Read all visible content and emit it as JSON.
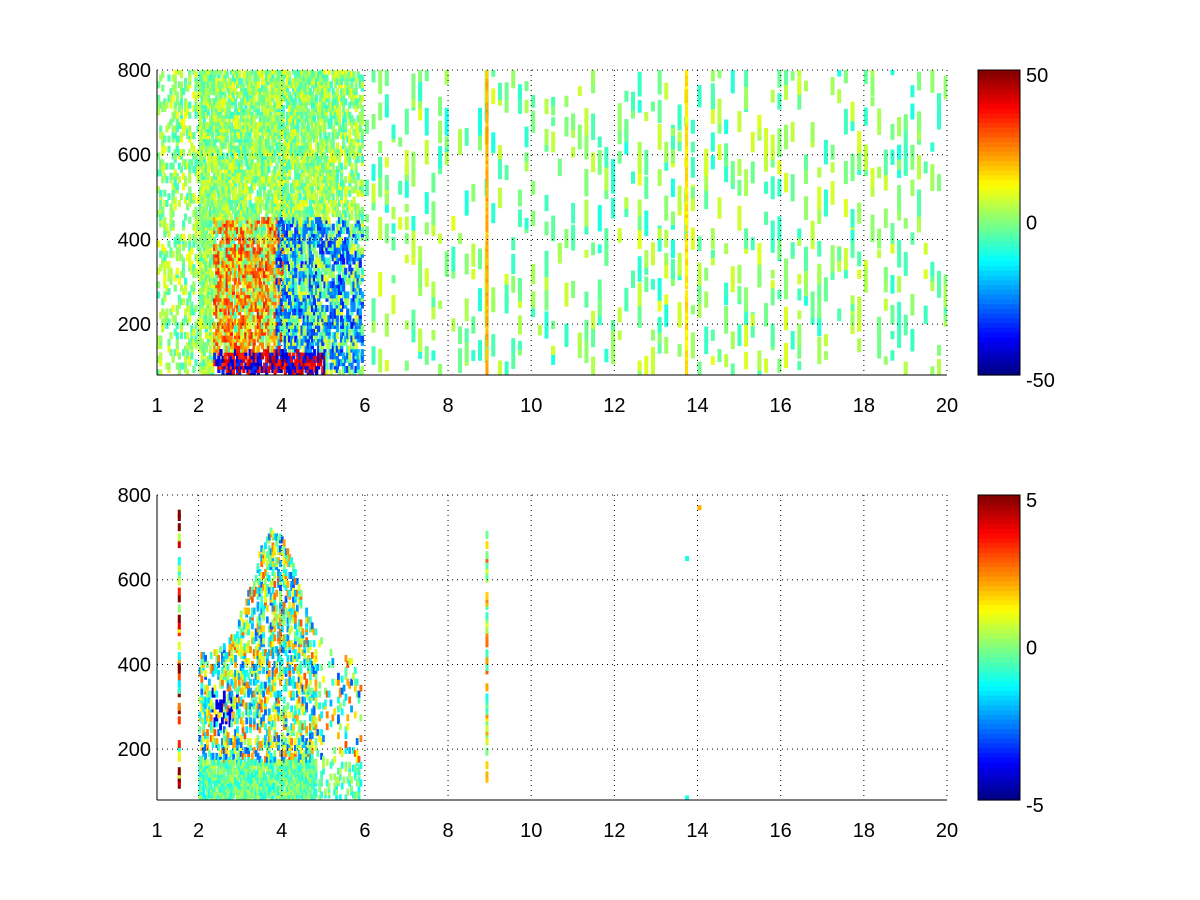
{
  "chart_data": [
    {
      "type": "heatmap",
      "title": "",
      "xlabel": "",
      "ylabel": "",
      "xlim": [
        1,
        20
      ],
      "ylim": [
        80,
        800
      ],
      "x_ticks": [
        1,
        2,
        4,
        6,
        8,
        10,
        12,
        14,
        16,
        18,
        20
      ],
      "y_ticks": [
        200,
        400,
        600,
        800
      ],
      "grid": true,
      "grid_style": "dotted",
      "colormap": "jet",
      "colorbar": {
        "range": [
          -50,
          50
        ],
        "ticks": [
          -50,
          0,
          50
        ]
      },
      "structure_note_values": {
        "dense_band_x": [
          1.0,
          5.9
        ],
        "strong_positive_region": {
          "x": [
            2.3,
            4.0
          ],
          "y": [
            100,
            450
          ],
          "value": 30
        },
        "strong_negative_region": {
          "x": [
            3.8,
            5.9
          ],
          "y": [
            90,
            450
          ],
          "value": -30
        },
        "vertical_lines": [
          {
            "x": 8.9,
            "value": 20
          },
          {
            "x": 13.7,
            "value": 15
          }
        ],
        "sparse_region_x": [
          6,
          20
        ],
        "sparse_value_range": [
          -10,
          10
        ]
      }
    },
    {
      "type": "heatmap",
      "title": "",
      "xlabel": "",
      "ylabel": "",
      "xlim": [
        1,
        20
      ],
      "ylim": [
        80,
        800
      ],
      "x_ticks": [
        1,
        2,
        4,
        6,
        8,
        10,
        12,
        14,
        16,
        18,
        20
      ],
      "y_ticks": [
        200,
        400,
        600,
        800
      ],
      "grid": true,
      "grid_style": "dotted",
      "colormap": "jet",
      "colorbar": {
        "range": [
          -5,
          5
        ],
        "ticks": [
          -5,
          0,
          5
        ]
      },
      "structure_note_values": {
        "dense_band_x": [
          2.0,
          5.9
        ],
        "bottom_band_y": [
          80,
          170
        ],
        "vertical_lines": [
          {
            "x": 1.5,
            "value": 5
          },
          {
            "x": 8.9,
            "y_range": [
              130,
              720
            ],
            "value": 2
          }
        ],
        "isolated_points": [
          {
            "x": 14.0,
            "y": 770,
            "value": 2
          },
          {
            "x": 13.7,
            "y": 650,
            "value": -1
          },
          {
            "x": 13.7,
            "y": 85,
            "value": -1
          }
        ]
      }
    }
  ]
}
